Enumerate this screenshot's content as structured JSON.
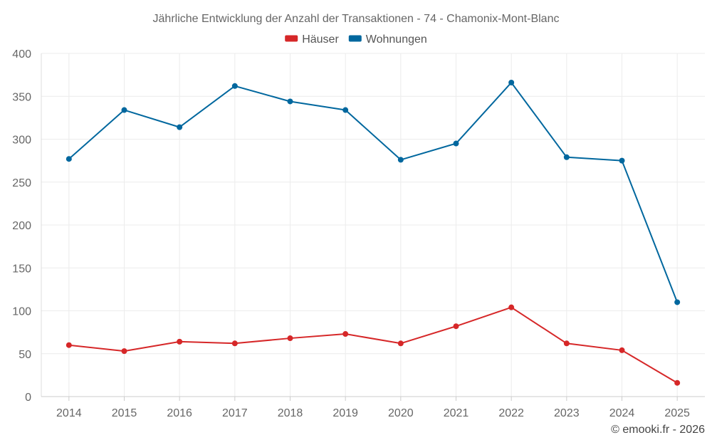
{
  "chart_data": {
    "type": "line",
    "title": "Jährliche Entwicklung der Anzahl der Transaktionen - 74 - Chamonix-Mont-Blanc",
    "categories": [
      "2014",
      "2015",
      "2016",
      "2017",
      "2018",
      "2019",
      "2020",
      "2021",
      "2022",
      "2023",
      "2024",
      "2025"
    ],
    "ylim": [
      0,
      400
    ],
    "yticks": [
      0,
      50,
      100,
      150,
      200,
      250,
      300,
      350,
      400
    ],
    "grid": true,
    "legend_position": "top-center",
    "series": [
      {
        "name": "Häuser",
        "color": "#d62728",
        "values": [
          60,
          53,
          64,
          62,
          68,
          73,
          62,
          82,
          104,
          62,
          54,
          16
        ]
      },
      {
        "name": "Wohnungen",
        "color": "#00679e",
        "values": [
          277,
          334,
          314,
          362,
          344,
          334,
          276,
          295,
          366,
          279,
          275,
          110
        ]
      }
    ],
    "credit": "© emooki.fr - 2026"
  }
}
